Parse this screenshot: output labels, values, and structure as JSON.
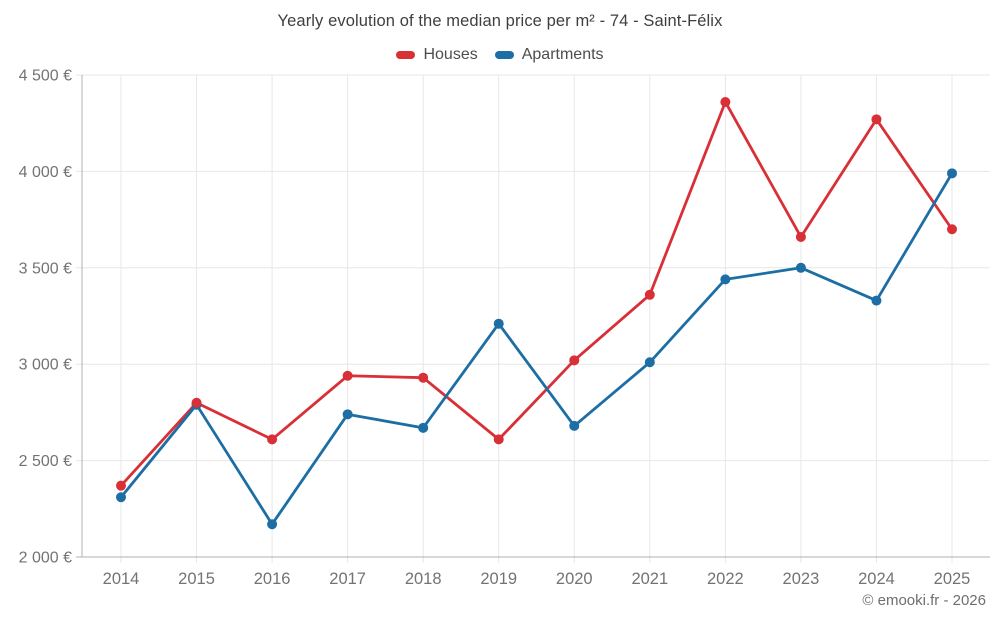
{
  "title": "Yearly evolution of the median price per m² - 74 - Saint-Félix",
  "copyright": "© emooki.fr - 2026",
  "chart_data": {
    "type": "line",
    "x": [
      "2014",
      "2015",
      "2016",
      "2017",
      "2018",
      "2019",
      "2020",
      "2021",
      "2022",
      "2023",
      "2024",
      "2025"
    ],
    "series": [
      {
        "name": "Houses",
        "color": "#d92f36",
        "values": [
          2370,
          2800,
          2610,
          2940,
          2930,
          2610,
          3020,
          3360,
          4360,
          3660,
          4270,
          3700
        ]
      },
      {
        "name": "Apartments",
        "color": "#1c6ea4",
        "values": [
          2310,
          2790,
          2170,
          2740,
          2670,
          3210,
          2680,
          3010,
          3440,
          3500,
          3330,
          3990
        ]
      }
    ],
    "title": "Yearly evolution of the median price per m² - 74 - Saint-Félix",
    "xlabel": "",
    "ylabel": "",
    "ylim": [
      2000,
      4500
    ],
    "ytick_step": 500,
    "ytick_labels": [
      "2 000 €",
      "2 500 €",
      "3 000 €",
      "3 500 €",
      "4 000 €",
      "4 500 €"
    ],
    "grid": true,
    "legend_position": "top",
    "marker": "circle"
  },
  "colors": {
    "grid": "#e7e7e7",
    "axis": "#b0b0b0",
    "tick_label": "#737373",
    "title_text": "#3f3f3f",
    "legend_text": "#4d4d4d",
    "copyright_text": "#6e6e6e",
    "background": "#ffffff"
  }
}
